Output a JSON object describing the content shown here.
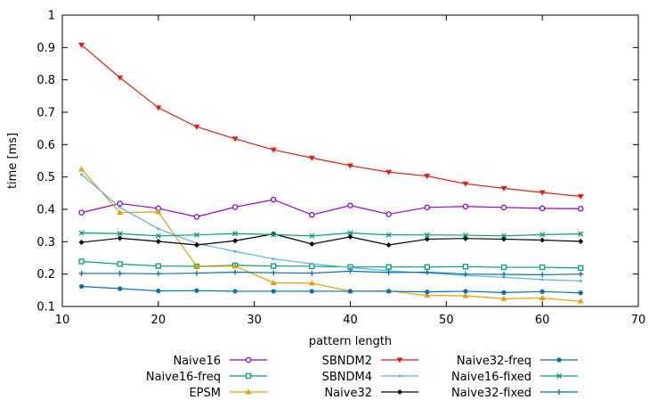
{
  "chart_data": {
    "type": "line",
    "title": "",
    "xlabel": "pattern length",
    "ylabel": "time [ms]",
    "xlim": [
      10,
      70
    ],
    "ylim": [
      0.1,
      1.0
    ],
    "xticks": [
      10,
      20,
      30,
      40,
      50,
      60,
      70
    ],
    "yticks": [
      0.1,
      0.2,
      0.3,
      0.4,
      0.5,
      0.6,
      0.7,
      0.8,
      0.9,
      1.0
    ],
    "legend_position": "bottom",
    "x": [
      12,
      16,
      20,
      24,
      28,
      32,
      36,
      40,
      44,
      48,
      52,
      56,
      60,
      64
    ],
    "series": [
      {
        "name": "Naive16",
        "color": "#9400d3",
        "marker": "circle-open",
        "values": [
          0.39,
          0.418,
          0.403,
          0.377,
          0.407,
          0.43,
          0.383,
          0.412,
          0.385,
          0.406,
          0.409,
          0.406,
          0.403,
          0.402
        ]
      },
      {
        "name": "Naive16-freq",
        "color": "#009e73",
        "marker": "square-open",
        "values": [
          0.239,
          0.231,
          0.225,
          0.224,
          0.227,
          0.225,
          0.224,
          0.222,
          0.222,
          0.222,
          0.223,
          0.221,
          0.221,
          0.219
        ]
      },
      {
        "name": "EPSM",
        "color": "#e69f00",
        "marker": "triangle-up",
        "values": [
          0.524,
          0.39,
          0.392,
          0.223,
          0.225,
          0.173,
          0.172,
          0.147,
          0.148,
          0.134,
          0.133,
          0.124,
          0.126,
          0.116
        ]
      },
      {
        "name": "SBNDM2",
        "color": "#e51e10",
        "marker": "triangle-down",
        "values": [
          0.908,
          0.807,
          0.714,
          0.655,
          0.618,
          0.584,
          0.559,
          0.535,
          0.515,
          0.503,
          0.479,
          0.465,
          0.452,
          0.44
        ]
      },
      {
        "name": "SBNDM4",
        "color": "#56b4e9",
        "marker": "point",
        "values": [
          0.508,
          0.406,
          0.34,
          0.295,
          0.27,
          0.247,
          0.232,
          0.22,
          0.21,
          0.203,
          0.196,
          0.19,
          0.183,
          0.179
        ]
      },
      {
        "name": "Naive32",
        "color": "#000000",
        "marker": "diamond",
        "values": [
          0.298,
          0.311,
          0.301,
          0.29,
          0.303,
          0.324,
          0.293,
          0.315,
          0.29,
          0.308,
          0.31,
          0.308,
          0.305,
          0.301
        ]
      },
      {
        "name": "Naive32-freq",
        "color": "#0072b2",
        "marker": "circle",
        "values": [
          0.162,
          0.155,
          0.148,
          0.149,
          0.147,
          0.147,
          0.147,
          0.147,
          0.147,
          0.145,
          0.147,
          0.143,
          0.146,
          0.142
        ]
      },
      {
        "name": "Naive16-fixed",
        "color": "#009e73",
        "marker": "x",
        "values": [
          0.327,
          0.325,
          0.318,
          0.321,
          0.325,
          0.322,
          0.318,
          0.327,
          0.321,
          0.321,
          0.32,
          0.318,
          0.322,
          0.324
        ]
      },
      {
        "name": "Naive32-fixed",
        "color": "#0072b2",
        "marker": "plus",
        "values": [
          0.202,
          0.202,
          0.201,
          0.203,
          0.206,
          0.204,
          0.203,
          0.209,
          0.205,
          0.206,
          0.2,
          0.199,
          0.198,
          0.2
        ]
      }
    ]
  }
}
